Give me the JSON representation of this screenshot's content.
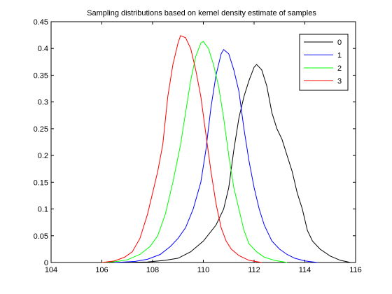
{
  "chart_data": {
    "type": "line",
    "title": "Sampling distributions based on kernel density estimate of samples",
    "xlabel": "",
    "ylabel": "",
    "xlim": [
      104,
      116
    ],
    "ylim": [
      0,
      0.45
    ],
    "xticks": [
      "104",
      "106",
      "108",
      "110",
      "112",
      "114",
      "116"
    ],
    "yticks": [
      "0",
      "0.05",
      "0.1",
      "0.15",
      "0.2",
      "0.25",
      "0.3",
      "0.35",
      "0.4",
      "0.45"
    ],
    "grid": false,
    "legend_position": "top-right",
    "series": [
      {
        "name": "0",
        "color": "#000000",
        "points": [
          [
            106.8,
            0
          ],
          [
            107.8,
            0.001
          ],
          [
            108.5,
            0.004
          ],
          [
            109,
            0.008
          ],
          [
            109.5,
            0.02
          ],
          [
            110,
            0.04
          ],
          [
            110.5,
            0.07
          ],
          [
            110.8,
            0.1
          ],
          [
            111,
            0.14
          ],
          [
            111.2,
            0.21
          ],
          [
            111.4,
            0.27
          ],
          [
            111.6,
            0.31
          ],
          [
            111.8,
            0.34
          ],
          [
            112,
            0.365
          ],
          [
            112.1,
            0.37
          ],
          [
            112.3,
            0.36
          ],
          [
            112.5,
            0.33
          ],
          [
            112.7,
            0.28
          ],
          [
            112.9,
            0.25
          ],
          [
            113.1,
            0.23
          ],
          [
            113.3,
            0.2
          ],
          [
            113.5,
            0.17
          ],
          [
            113.7,
            0.13
          ],
          [
            113.9,
            0.1
          ],
          [
            114.1,
            0.06
          ],
          [
            114.3,
            0.04
          ],
          [
            114.6,
            0.025
          ],
          [
            115,
            0.012
          ],
          [
            115.4,
            0.004
          ],
          [
            115.8,
            0
          ]
        ]
      },
      {
        "name": "1",
        "color": "#0000ff",
        "points": [
          [
            106.5,
            0
          ],
          [
            107.3,
            0.002
          ],
          [
            107.8,
            0.006
          ],
          [
            108.3,
            0.015
          ],
          [
            108.7,
            0.03
          ],
          [
            109,
            0.045
          ],
          [
            109.3,
            0.065
          ],
          [
            109.6,
            0.1
          ],
          [
            109.9,
            0.15
          ],
          [
            110.1,
            0.21
          ],
          [
            110.3,
            0.29
          ],
          [
            110.5,
            0.35
          ],
          [
            110.7,
            0.39
          ],
          [
            110.8,
            0.398
          ],
          [
            111,
            0.39
          ],
          [
            111.2,
            0.36
          ],
          [
            111.4,
            0.32
          ],
          [
            111.6,
            0.25
          ],
          [
            111.8,
            0.19
          ],
          [
            112,
            0.14
          ],
          [
            112.2,
            0.1
          ],
          [
            112.4,
            0.07
          ],
          [
            112.7,
            0.04
          ],
          [
            113,
            0.025
          ],
          [
            113.3,
            0.015
          ],
          [
            113.6,
            0.008
          ],
          [
            114,
            0.003
          ],
          [
            114.5,
            0
          ]
        ]
      },
      {
        "name": "2",
        "color": "#00ff00",
        "points": [
          [
            106,
            0
          ],
          [
            106.6,
            0.002
          ],
          [
            107,
            0.005
          ],
          [
            107.5,
            0.015
          ],
          [
            107.9,
            0.03
          ],
          [
            108.2,
            0.05
          ],
          [
            108.5,
            0.09
          ],
          [
            108.8,
            0.15
          ],
          [
            109.1,
            0.22
          ],
          [
            109.3,
            0.28
          ],
          [
            109.5,
            0.34
          ],
          [
            109.7,
            0.385
          ],
          [
            109.9,
            0.41
          ],
          [
            110,
            0.413
          ],
          [
            110.2,
            0.4
          ],
          [
            110.4,
            0.37
          ],
          [
            110.6,
            0.33
          ],
          [
            110.8,
            0.27
          ],
          [
            111,
            0.2
          ],
          [
            111.2,
            0.14
          ],
          [
            111.4,
            0.1
          ],
          [
            111.6,
            0.06
          ],
          [
            111.8,
            0.035
          ],
          [
            112.1,
            0.02
          ],
          [
            112.4,
            0.01
          ],
          [
            112.8,
            0.004
          ],
          [
            113.3,
            0
          ]
        ]
      },
      {
        "name": "3",
        "color": "#ff0000",
        "points": [
          [
            106,
            0
          ],
          [
            106.5,
            0.003
          ],
          [
            106.9,
            0.01
          ],
          [
            107.2,
            0.02
          ],
          [
            107.5,
            0.045
          ],
          [
            107.8,
            0.09
          ],
          [
            108,
            0.13
          ],
          [
            108.2,
            0.17
          ],
          [
            108.4,
            0.22
          ],
          [
            108.6,
            0.31
          ],
          [
            108.8,
            0.37
          ],
          [
            109,
            0.41
          ],
          [
            109.1,
            0.424
          ],
          [
            109.3,
            0.42
          ],
          [
            109.5,
            0.4
          ],
          [
            109.7,
            0.36
          ],
          [
            109.9,
            0.31
          ],
          [
            110.1,
            0.24
          ],
          [
            110.3,
            0.17
          ],
          [
            110.5,
            0.11
          ],
          [
            110.7,
            0.065
          ],
          [
            110.9,
            0.04
          ],
          [
            111.1,
            0.025
          ],
          [
            111.4,
            0.013
          ],
          [
            111.8,
            0.004
          ],
          [
            112.3,
            0
          ]
        ]
      }
    ]
  }
}
